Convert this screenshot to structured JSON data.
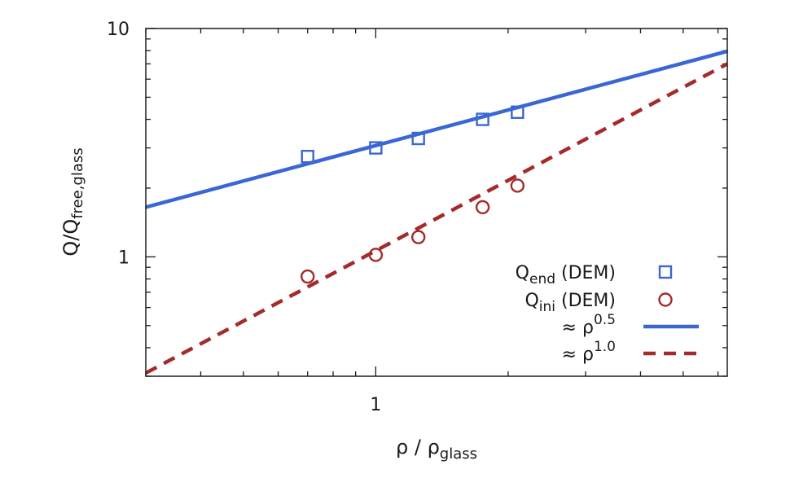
{
  "chart_data": {
    "type": "scatter",
    "title": "",
    "xlabel": {
      "main": "ρ / ρ",
      "sub": "glass"
    },
    "ylabel": {
      "main": "Q/Q",
      "sub": "free,glass"
    },
    "xscale": "log",
    "yscale": "log",
    "xlim": [
      0.3,
      6.3
    ],
    "ylim": [
      0.3,
      10
    ],
    "x_tick_labels": [
      {
        "value": 1,
        "label": "1"
      }
    ],
    "y_tick_labels": [
      {
        "value": 1,
        "label": "1"
      },
      {
        "value": 10,
        "label": "10"
      }
    ],
    "legend_position": "bottom-right",
    "grid": false,
    "series": [
      {
        "name": "Q_end (DEM)",
        "legend": {
          "main": "Q",
          "sub": "end",
          "suffix": " (DEM)"
        },
        "kind": "points",
        "marker": "square",
        "color": "#3a66d6",
        "x": [
          0.7,
          1.0,
          1.25,
          1.75,
          2.1
        ],
        "y": [
          2.75,
          3.0,
          3.3,
          4.0,
          4.3
        ]
      },
      {
        "name": "Q_ini (DEM)",
        "legend": {
          "main": "Q",
          "sub": "ini",
          "suffix": " (DEM)"
        },
        "kind": "points",
        "marker": "circle",
        "color": "#a52a2a",
        "x": [
          0.7,
          1.0,
          1.25,
          1.75,
          2.1
        ],
        "y": [
          0.82,
          1.02,
          1.22,
          1.65,
          2.05
        ]
      },
      {
        "name": "≈ ρ^0.5",
        "legend": {
          "main": "≈ ρ",
          "sup": "0.5"
        },
        "kind": "line",
        "dash": "solid",
        "color": "#3a66d6",
        "exponent": 0.5,
        "x": [
          0.3,
          6.3
        ],
        "y": [
          1.65,
          7.95
        ]
      },
      {
        "name": "≈ ρ^1.0",
        "legend": {
          "main": "≈ ρ",
          "sup": "1.0"
        },
        "kind": "line",
        "dash": "dashed",
        "color": "#a52a2a",
        "exponent": 1.0,
        "x": [
          0.3,
          6.3
        ],
        "y": [
          0.31,
          7.0
        ]
      }
    ]
  }
}
